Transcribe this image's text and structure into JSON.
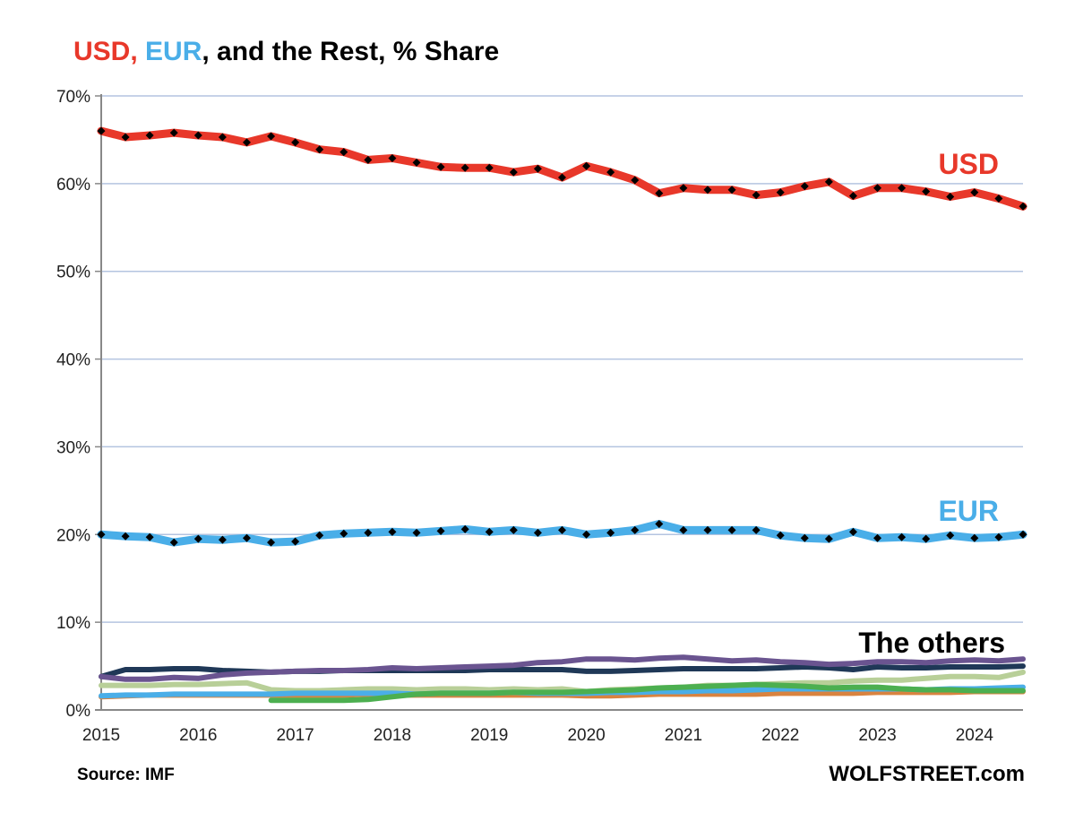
{
  "chart_data": {
    "type": "line",
    "title_parts": [
      {
        "text": "USD,",
        "color": "#e8382a"
      },
      {
        "text": " EUR",
        "color": "#4aaee8"
      },
      {
        "text": ", and the Rest, % Share",
        "color": "#000000"
      }
    ],
    "xlabel": "",
    "ylabel": "",
    "x_tick_labels": [
      "2015",
      "2016",
      "2017",
      "2018",
      "2019",
      "2020",
      "2021",
      "2022",
      "2023",
      "2024"
    ],
    "y_tick_labels": [
      "0%",
      "10%",
      "20%",
      "30%",
      "40%",
      "50%",
      "60%",
      "70%"
    ],
    "ylim": [
      0,
      70
    ],
    "xlim": [
      "2015 Q1",
      "2024 Q3"
    ],
    "frequency": "quarterly",
    "grid": "horizontal",
    "annotations": [
      {
        "text": "USD",
        "color": "#e8382a"
      },
      {
        "text": "EUR",
        "color": "#4aaee8"
      },
      {
        "text": "The others",
        "color": "#000000"
      }
    ],
    "series": [
      {
        "color": "#e8382a",
        "markers": true,
        "values": [
          66.0,
          65.3,
          65.5,
          65.8,
          65.5,
          65.3,
          64.7,
          65.4,
          64.7,
          63.9,
          63.6,
          62.7,
          62.9,
          62.4,
          61.9,
          61.8,
          61.8,
          61.3,
          61.7,
          60.7,
          62.0,
          61.3,
          60.4,
          58.9,
          59.5,
          59.3,
          59.3,
          58.7,
          59.0,
          59.7,
          60.2,
          58.6,
          59.5,
          59.5,
          59.1,
          58.5,
          59.0,
          58.3,
          57.4
        ]
      },
      {
        "color": "#4aaee8",
        "markers": true,
        "values": [
          20.0,
          19.8,
          19.7,
          19.1,
          19.5,
          19.4,
          19.6,
          19.1,
          19.2,
          19.9,
          20.1,
          20.2,
          20.3,
          20.2,
          20.4,
          20.6,
          20.3,
          20.5,
          20.2,
          20.5,
          20.0,
          20.2,
          20.5,
          21.2,
          20.5,
          20.5,
          20.5,
          20.5,
          19.9,
          19.6,
          19.5,
          20.3,
          19.6,
          19.7,
          19.5,
          19.9,
          19.6,
          19.7,
          20.0
        ]
      },
      {
        "color": "#6a5490",
        "markers": false,
        "values": [
          3.8,
          3.5,
          3.5,
          3.7,
          3.6,
          4.0,
          4.2,
          4.3,
          4.4,
          4.5,
          4.5,
          4.6,
          4.8,
          4.7,
          4.8,
          4.9,
          5.0,
          5.1,
          5.4,
          5.5,
          5.8,
          5.8,
          5.7,
          5.9,
          6.0,
          5.8,
          5.6,
          5.7,
          5.5,
          5.4,
          5.2,
          5.3,
          5.5,
          5.5,
          5.4,
          5.6,
          5.7,
          5.6,
          5.8
        ]
      },
      {
        "color": "#1f3857",
        "markers": false,
        "values": [
          3.8,
          4.6,
          4.6,
          4.7,
          4.7,
          4.5,
          4.4,
          4.3,
          4.4,
          4.4,
          4.5,
          4.5,
          4.5,
          4.5,
          4.5,
          4.5,
          4.6,
          4.6,
          4.6,
          4.6,
          4.4,
          4.4,
          4.5,
          4.6,
          4.7,
          4.7,
          4.7,
          4.7,
          4.8,
          4.9,
          4.8,
          4.6,
          4.9,
          4.8,
          4.8,
          4.9,
          4.9,
          4.9,
          5.0
        ]
      },
      {
        "color": "#b8cf98",
        "markers": false,
        "values": [
          2.8,
          2.8,
          2.8,
          2.9,
          2.9,
          3.0,
          3.1,
          2.3,
          2.2,
          2.2,
          2.3,
          2.4,
          2.4,
          2.3,
          2.4,
          2.4,
          2.3,
          2.4,
          2.3,
          2.4,
          2.1,
          2.3,
          2.4,
          2.5,
          2.6,
          2.8,
          2.8,
          2.9,
          3.0,
          3.1,
          3.1,
          3.3,
          3.4,
          3.4,
          3.6,
          3.8,
          3.8,
          3.7,
          4.3
        ]
      },
      {
        "color": "#d9833f",
        "markers": false,
        "values": [
          1.5,
          1.6,
          1.7,
          1.7,
          1.7,
          1.7,
          1.7,
          1.7,
          1.7,
          1.7,
          1.7,
          1.8,
          1.7,
          1.7,
          1.7,
          1.7,
          1.7,
          1.7,
          1.7,
          1.7,
          1.6,
          1.6,
          1.7,
          1.8,
          1.8,
          1.8,
          1.8,
          1.8,
          1.9,
          1.9,
          1.9,
          1.9,
          2.0,
          2.0,
          2.0,
          2.0,
          2.1,
          2.1,
          2.1
        ]
      },
      {
        "color": "#4aaee8",
        "markers": false,
        "values": [
          1.6,
          1.7,
          1.7,
          1.8,
          1.8,
          1.8,
          1.8,
          1.8,
          1.9,
          1.9,
          1.9,
          1.9,
          1.9,
          1.8,
          1.9,
          1.9,
          1.9,
          2.0,
          1.9,
          1.9,
          1.9,
          2.0,
          2.0,
          2.1,
          2.1,
          2.2,
          2.2,
          2.3,
          2.4,
          2.4,
          2.4,
          2.4,
          2.4,
          2.4,
          2.3,
          2.4,
          2.4,
          2.5,
          2.6
        ]
      },
      {
        "color": "#4caf50",
        "markers": false,
        "values": [
          null,
          null,
          null,
          null,
          null,
          null,
          null,
          1.1,
          1.1,
          1.1,
          1.1,
          1.2,
          1.5,
          1.8,
          1.9,
          1.9,
          1.9,
          2.0,
          2.0,
          2.0,
          2.1,
          2.2,
          2.3,
          2.5,
          2.6,
          2.7,
          2.8,
          2.9,
          2.8,
          2.7,
          2.5,
          2.6,
          2.6,
          2.4,
          2.3,
          2.3,
          2.2,
          2.2,
          2.2
        ]
      }
    ]
  },
  "footer": {
    "source": "Source: IMF",
    "brand": "WOLFSTREET.com"
  }
}
